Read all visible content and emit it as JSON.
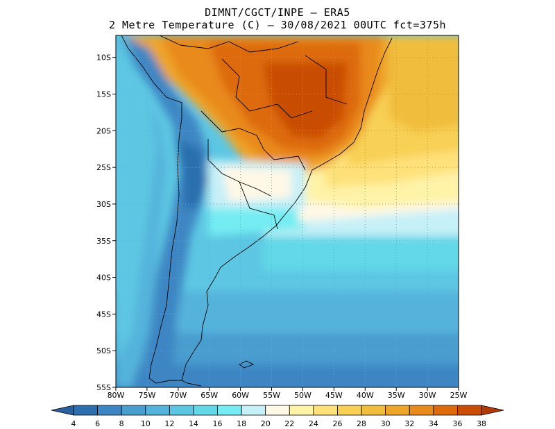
{
  "header": {
    "line1": "DIMNT/CGCT/INPE –  ERA5",
    "line2": "2 Metre Temperature (C) –  30/08/2021 00UTC fct=375h"
  },
  "map": {
    "lon_range": [
      -80,
      -25
    ],
    "lat_range": [
      -55,
      -7
    ],
    "lat_ticks": [
      {
        "value": -10,
        "label": "10S"
      },
      {
        "value": -15,
        "label": "15S"
      },
      {
        "value": -20,
        "label": "20S"
      },
      {
        "value": -25,
        "label": "25S"
      },
      {
        "value": -30,
        "label": "30S"
      },
      {
        "value": -35,
        "label": "35S"
      },
      {
        "value": -40,
        "label": "40S"
      },
      {
        "value": -45,
        "label": "45S"
      },
      {
        "value": -50,
        "label": "50S"
      },
      {
        "value": -55,
        "label": "55S"
      }
    ],
    "lon_ticks": [
      {
        "value": -80,
        "label": "80W"
      },
      {
        "value": -75,
        "label": "75W"
      },
      {
        "value": -70,
        "label": "70W"
      },
      {
        "value": -65,
        "label": "65W"
      },
      {
        "value": -60,
        "label": "60W"
      },
      {
        "value": -55,
        "label": "55W"
      },
      {
        "value": -50,
        "label": "50W"
      },
      {
        "value": -45,
        "label": "45W"
      },
      {
        "value": -40,
        "label": "40W"
      },
      {
        "value": -35,
        "label": "35W"
      },
      {
        "value": -30,
        "label": "30W"
      },
      {
        "value": -25,
        "label": "25W"
      }
    ]
  },
  "colorbar": {
    "labels": [
      "4",
      "6",
      "8",
      "10",
      "12",
      "14",
      "16",
      "18",
      "20",
      "22",
      "24",
      "26",
      "28",
      "30",
      "32",
      "34",
      "36",
      "38"
    ],
    "colors": [
      "#2c6fae",
      "#3e86c3",
      "#4a9dcf",
      "#54b3db",
      "#5dc7e3",
      "#62d8e8",
      "#74ecf2",
      "#c6f0f8",
      "#fff8e6",
      "#fff3a8",
      "#ffe17a",
      "#f8d055",
      "#f1bd3c",
      "#eea52a",
      "#e98a1c",
      "#dd6b0c",
      "#c94d05"
    ],
    "low_arrow_color": "#2c5f9e",
    "high_arrow_color": "#b03a06"
  }
}
